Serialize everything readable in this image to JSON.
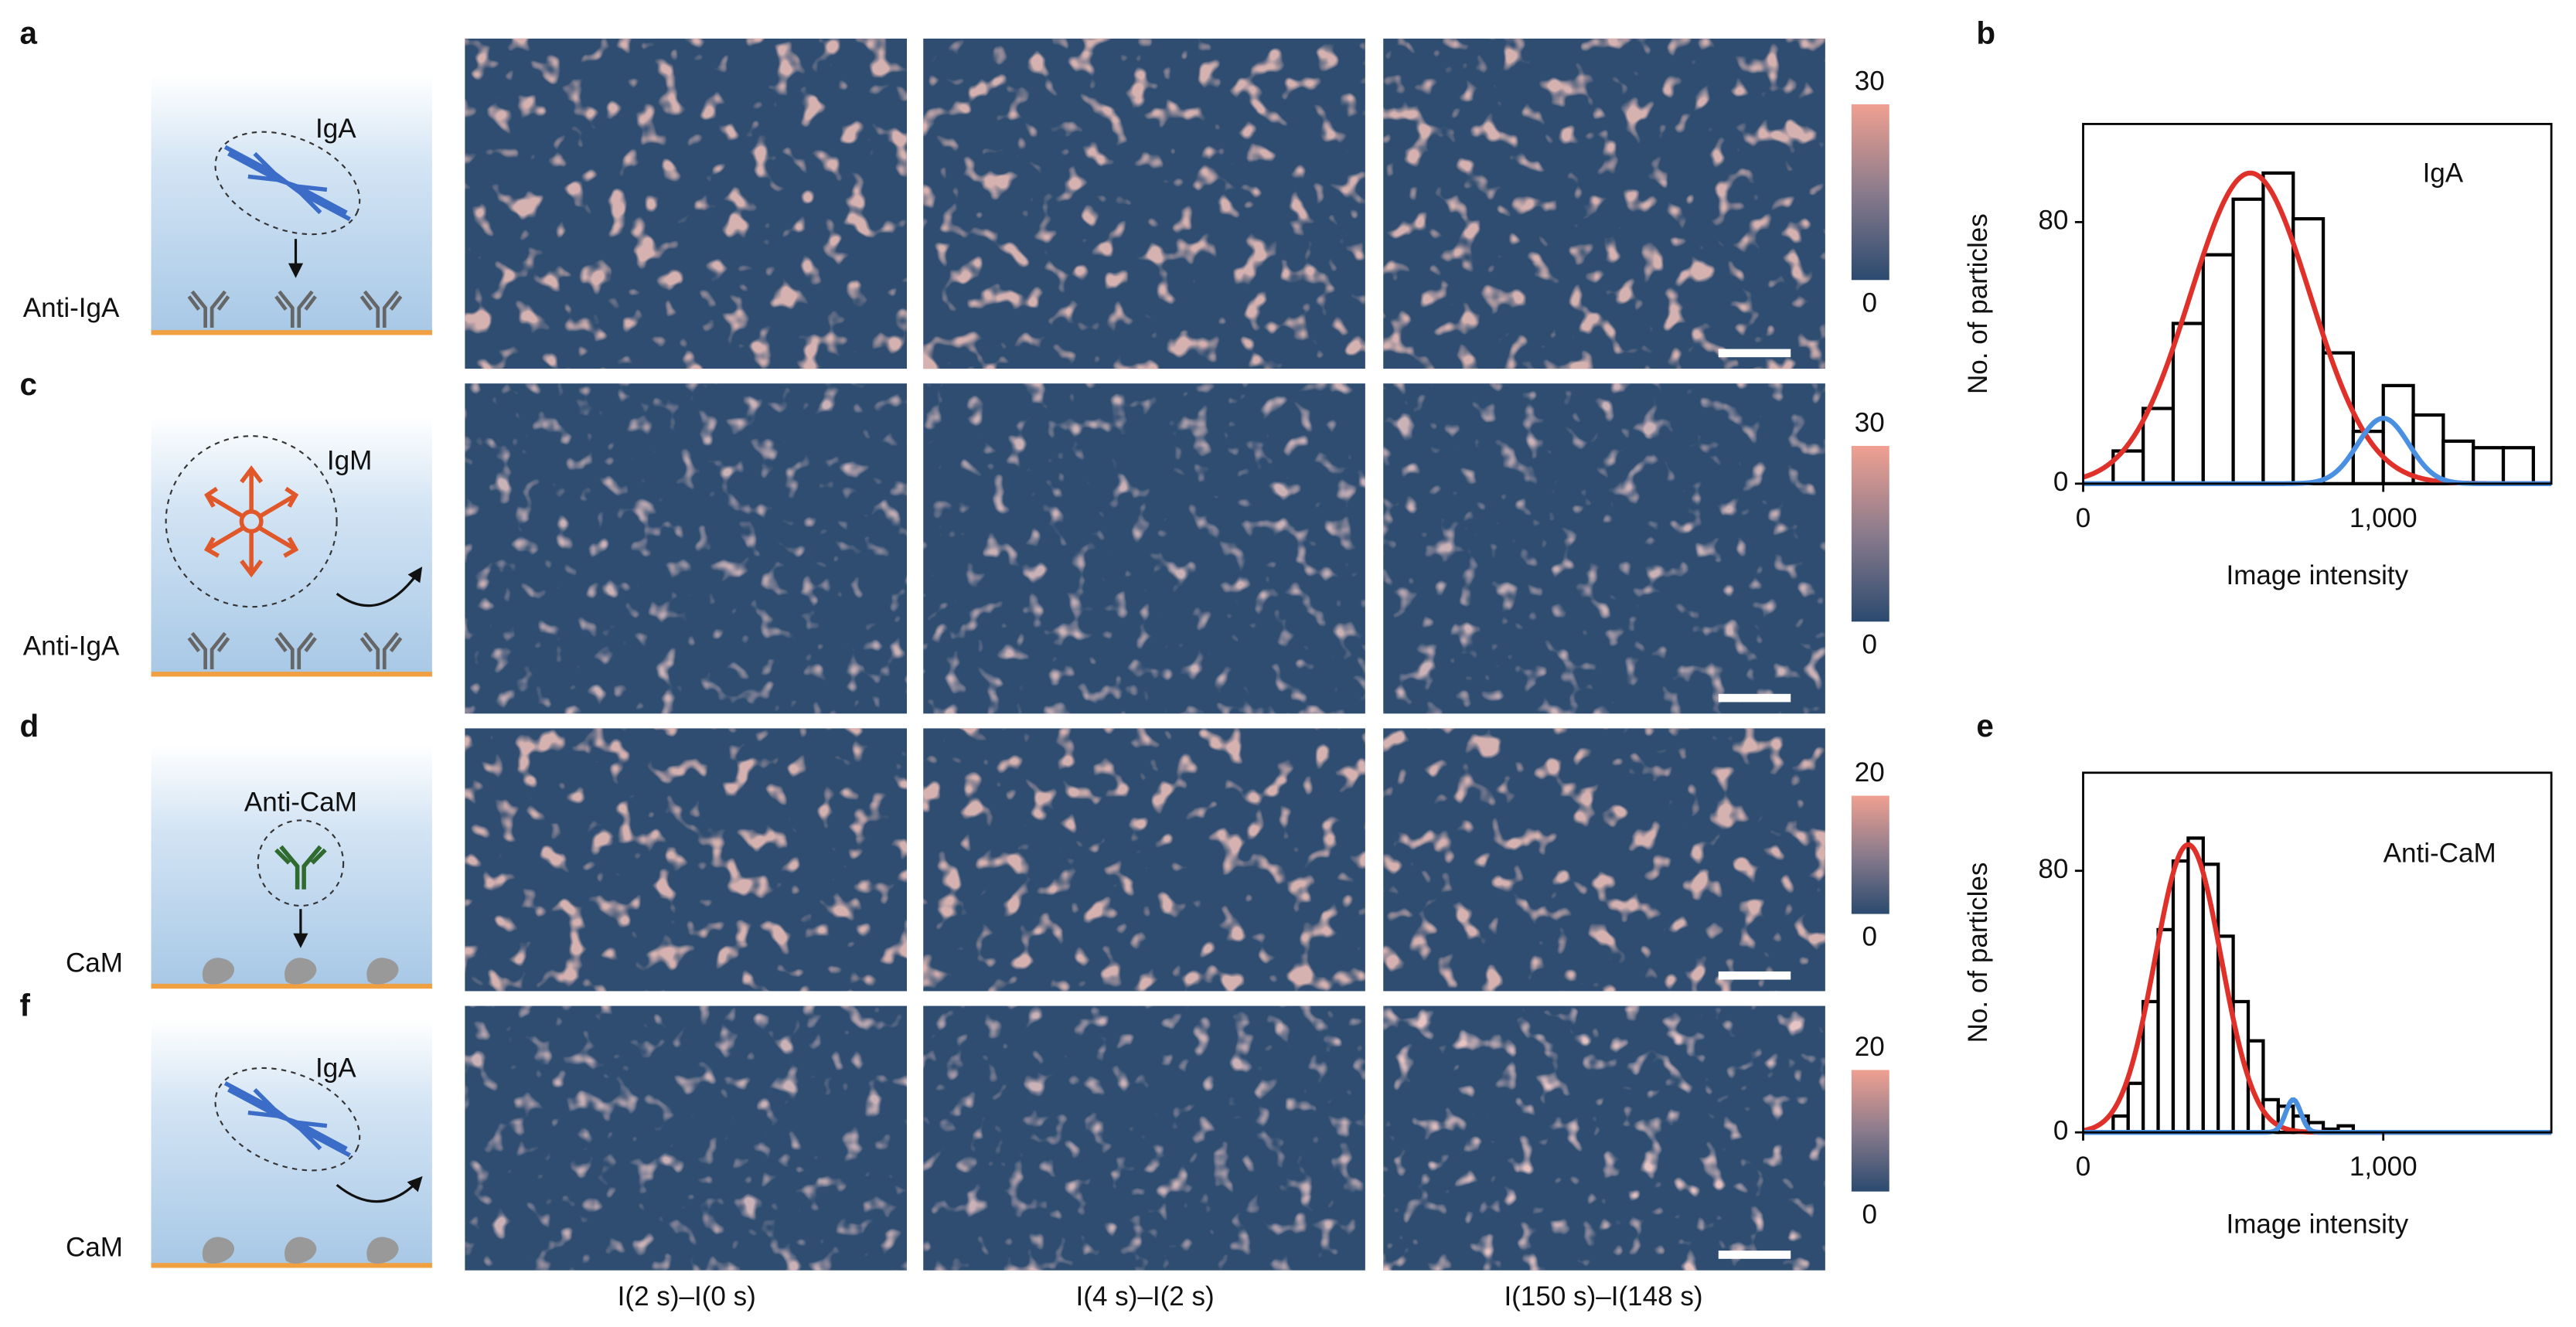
{
  "panel_letters": [
    "a",
    "b",
    "c",
    "d",
    "e",
    "f"
  ],
  "schematics": [
    {
      "analyte": "IgA",
      "surface": "Anti-IgA"
    },
    {
      "analyte": "IgM",
      "surface": "Anti-IgA"
    },
    {
      "analyte": "Anti-CaM",
      "surface": "CaM"
    },
    {
      "analyte": "IgA",
      "surface": "CaM"
    }
  ],
  "colorbars": [
    {
      "ticks": [
        0,
        30
      ]
    },
    {
      "ticks": [
        0,
        30
      ]
    },
    {
      "ticks": [
        0,
        20
      ]
    },
    {
      "ticks": [
        0,
        20
      ]
    }
  ],
  "column_labels": [
    "I(2 s)–I(0 s)",
    "I(4 s)–I(2 s)",
    "I(150 s)–I(148 s)"
  ],
  "chart_data": [
    {
      "type": "histogram",
      "annotation": "IgA",
      "xlabel": "Image intensity",
      "ylabel": "No. of particles",
      "bins": [
        100,
        200,
        300,
        400,
        500,
        600,
        700,
        800,
        900,
        1000,
        1100,
        1200,
        1300,
        1400,
        1500
      ],
      "values": [
        10,
        23,
        49,
        70,
        87,
        95,
        81,
        40,
        16,
        30,
        21,
        13,
        11,
        11
      ],
      "bar_color": "#000000",
      "fits": [
        {
          "color": "#e0302a",
          "mean": 557,
          "sd": 200,
          "peak": 95
        },
        {
          "color": "#4a90e2",
          "mean": 1000,
          "sd": 85,
          "peak": 20
        }
      ],
      "xlim": [
        0,
        1560
      ],
      "ylim": [
        0,
        110
      ],
      "xticks": [
        0,
        {
          "value": 1000,
          "label": "1,000"
        }
      ],
      "yticks": [
        0,
        80
      ]
    },
    {
      "type": "histogram",
      "annotation": "Anti-CaM",
      "xlabel": "Image intensity",
      "ylabel": "No. of particles",
      "bins": [
        100,
        150,
        200,
        250,
        300,
        350,
        400,
        450,
        500,
        550,
        600,
        650,
        700,
        750,
        800,
        850,
        900
      ],
      "values": [
        5,
        15,
        40,
        62,
        83,
        90,
        82,
        60,
        40,
        28,
        10,
        8,
        5,
        3,
        1,
        2
      ],
      "bar_color": "#000000",
      "fits": [
        {
          "color": "#e0302a",
          "mean": 350,
          "sd": 110,
          "peak": 88
        },
        {
          "color": "#4a90e2",
          "mean": 700,
          "sd": 25,
          "peak": 10
        }
      ],
      "xlim": [
        0,
        1560
      ],
      "ylim": [
        0,
        110
      ],
      "xticks": [
        0,
        {
          "value": 1000,
          "label": "1,000"
        }
      ],
      "yticks": [
        0,
        80
      ]
    }
  ]
}
